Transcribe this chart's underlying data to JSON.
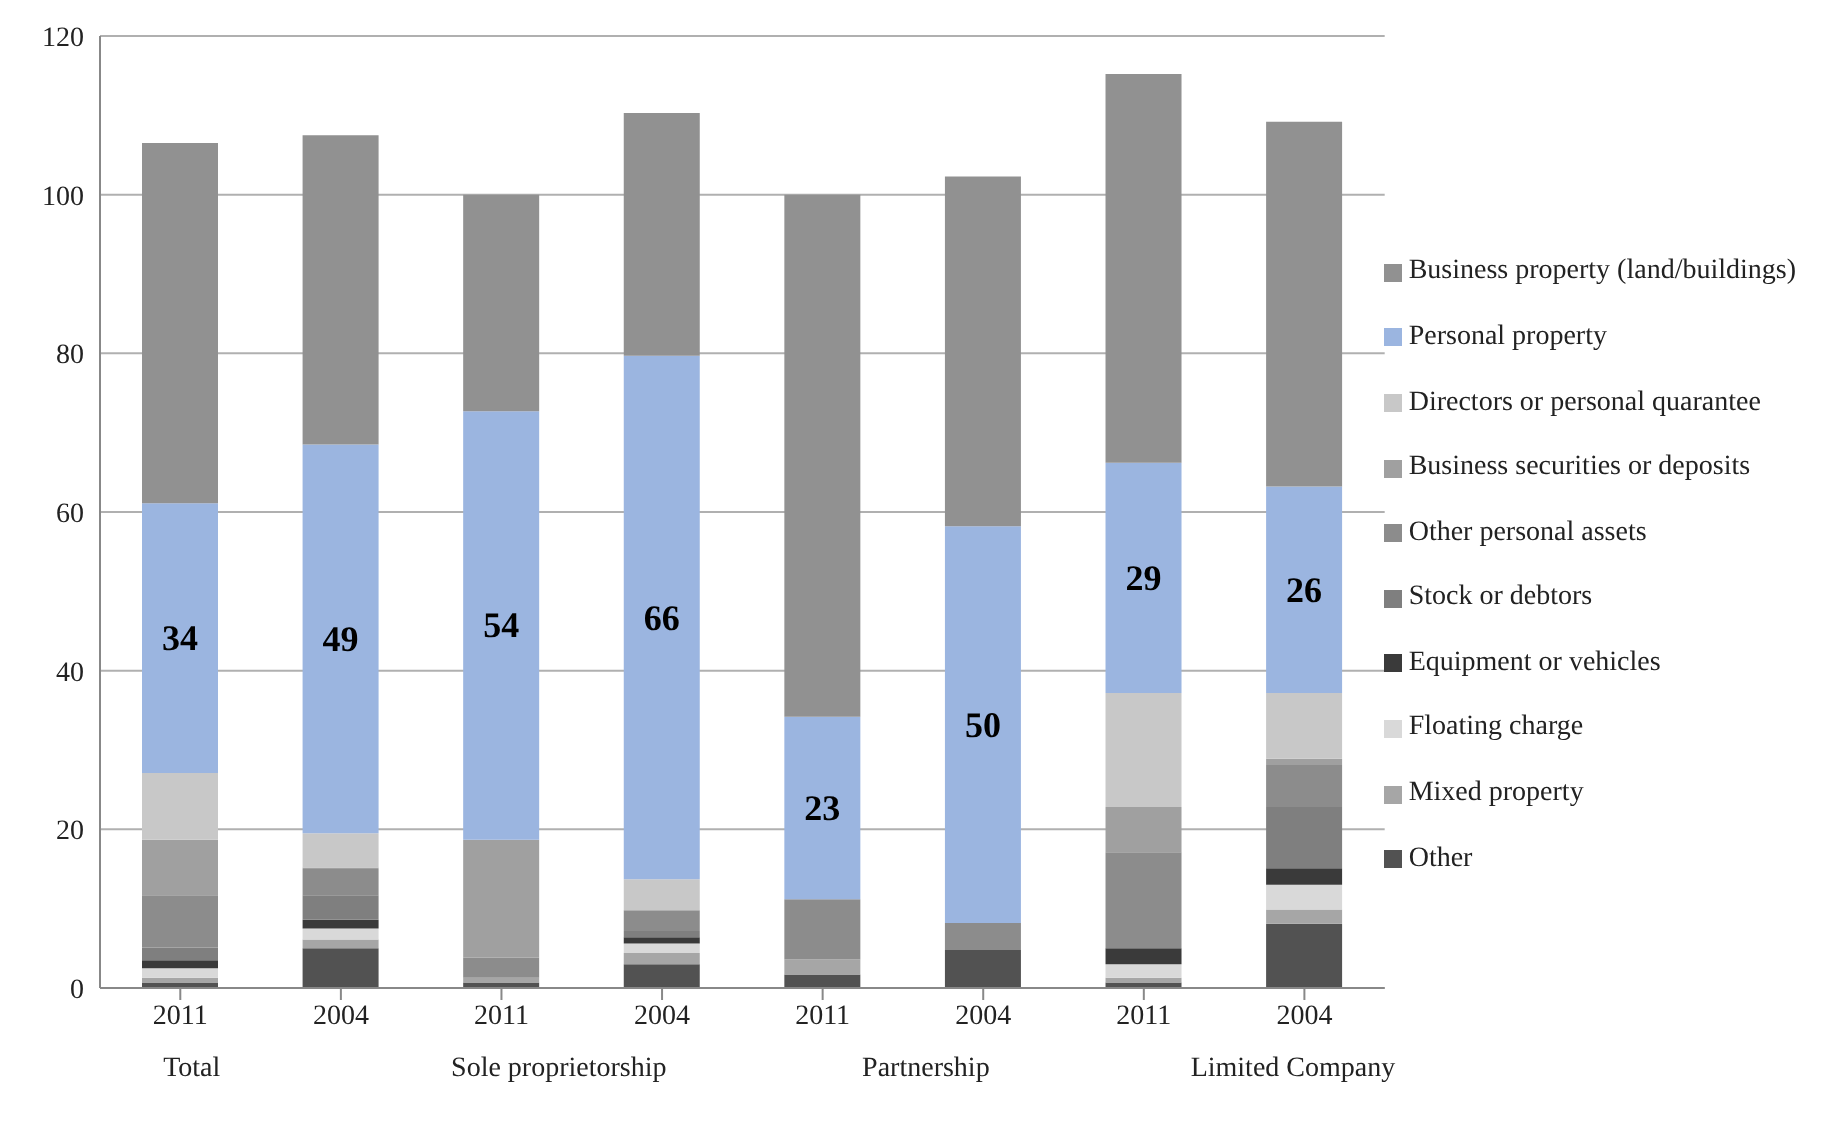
{
  "chart_data": {
    "type": "bar",
    "stacked": true,
    "categories": [
      "2011",
      "2004",
      "2011",
      "2004",
      "2011",
      "2004",
      "2011",
      "2004"
    ],
    "annotations": [
      "Total",
      "Sole proprietorship",
      "Partnership",
      "Limited Company"
    ],
    "series": [
      {
        "name": "Other",
        "color": "#525252",
        "values": [
          0.7,
          5.0,
          0.7,
          3.0,
          1.7,
          4.8,
          0.7,
          8.1
        ]
      },
      {
        "name": "Mixed property",
        "color": "#a6a6a6",
        "values": [
          0.6,
          1.1,
          0.6,
          1.4,
          1.9,
          0,
          0.6,
          1.8
        ]
      },
      {
        "name": "Floating charge",
        "color": "#d9d9d9",
        "values": [
          1.2,
          1.4,
          0,
          1.2,
          0,
          0,
          1.7,
          3.1
        ]
      },
      {
        "name": "Equipment or vehicles",
        "color": "#3a3a3a",
        "values": [
          1.0,
          1.1,
          0,
          0.8,
          0,
          0,
          2.0,
          2.1
        ]
      },
      {
        "name": "Stock or debtors",
        "color": "#7f7f7f",
        "values": [
          1.6,
          3.1,
          0,
          0.8,
          0,
          0,
          0,
          7.7
        ]
      },
      {
        "name": "Other personal assets",
        "color": "#8c8c8c",
        "values": [
          6.6,
          3.3,
          2.5,
          2.6,
          7.6,
          3.4,
          12.1,
          5.3
        ]
      },
      {
        "name": "Business securities or deposits",
        "color": "#a0a0a0",
        "values": [
          7.0,
          0.2,
          14.9,
          0,
          0,
          0,
          5.7,
          0.8
        ]
      },
      {
        "name": "Directors or personal quarantee",
        "color": "#c8c8c8",
        "values": [
          8.4,
          4.3,
          0,
          3.9,
          0,
          0,
          14.4,
          8.3
        ]
      },
      {
        "name": "Personal property",
        "color": "#9bb5e0",
        "values": [
          34,
          49,
          54,
          66,
          23,
          50,
          29,
          26
        ],
        "value_labels": [
          "34",
          "49",
          "54",
          "66",
          "23",
          "50",
          "29",
          "26"
        ]
      },
      {
        "name": "Business property (land/buildings)",
        "color": "#919191",
        "values": [
          45.4,
          39,
          27.3,
          30.6,
          65.8,
          44.1,
          49,
          46
        ]
      }
    ],
    "ylim": [
      0,
      120
    ],
    "yticks": [
      0,
      20,
      40,
      60,
      80,
      100,
      120
    ],
    "grid": "y",
    "legend": "right"
  }
}
